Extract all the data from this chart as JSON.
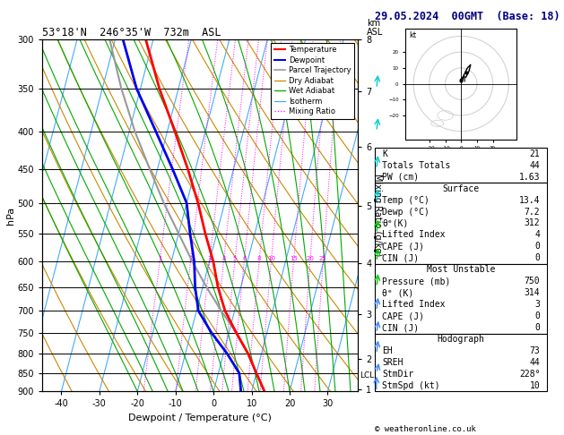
{
  "title_left": "53°18'N  246°35'W  732m  ASL",
  "title_right": "29.05.2024  00GMT  (Base: 18)",
  "xlabel": "Dewpoint / Temperature (°C)",
  "ylabel_left": "hPa",
  "pressure_levels": [
    300,
    350,
    400,
    450,
    500,
    550,
    600,
    650,
    700,
    750,
    800,
    850,
    900
  ],
  "temp_color": "#ff0000",
  "dewp_color": "#0000ee",
  "parcel_color": "#999999",
  "dry_adiabat_color": "#cc8800",
  "wet_adiabat_color": "#00aa00",
  "isotherm_color": "#44aaff",
  "mixing_ratio_color": "#ff00ff",
  "background_color": "#ffffff",
  "xlim": [
    -45,
    38
  ],
  "ylim_pressure": [
    900,
    300
  ],
  "mixing_ratio_vals": [
    1,
    2,
    3,
    4,
    5,
    6,
    8,
    10,
    15,
    20,
    25
  ],
  "km_ticks": [
    1,
    2,
    3,
    4,
    5,
    6,
    7,
    8
  ],
  "km_pressures": [
    895,
    812,
    705,
    600,
    500,
    415,
    348,
    295
  ],
  "lcl_pressure": 856,
  "wind_barb_pressures": [
    300,
    350,
    400,
    450,
    500,
    550,
    600,
    650,
    700,
    750,
    800,
    850,
    900
  ],
  "wind_u": [
    5,
    8,
    10,
    12,
    10,
    8,
    5,
    3,
    2,
    1,
    0,
    0,
    0
  ],
  "wind_v": [
    15,
    18,
    20,
    22,
    18,
    15,
    12,
    8,
    5,
    3,
    2,
    1,
    0
  ],
  "stats": {
    "K": 21,
    "Totals_Totals": 44,
    "PW_cm": 1.63,
    "Surface_Temp": 13.4,
    "Surface_Dewp": 7.2,
    "Surface_theta_e": 312,
    "Surface_LI": 4,
    "Surface_CAPE": 0,
    "Surface_CIN": 0,
    "MU_Pressure": 750,
    "MU_theta_e": 314,
    "MU_LI": 3,
    "MU_CAPE": 0,
    "MU_CIN": 0,
    "EH": 73,
    "SREH": 44,
    "StmDir": 228,
    "StmSpd": 10
  }
}
